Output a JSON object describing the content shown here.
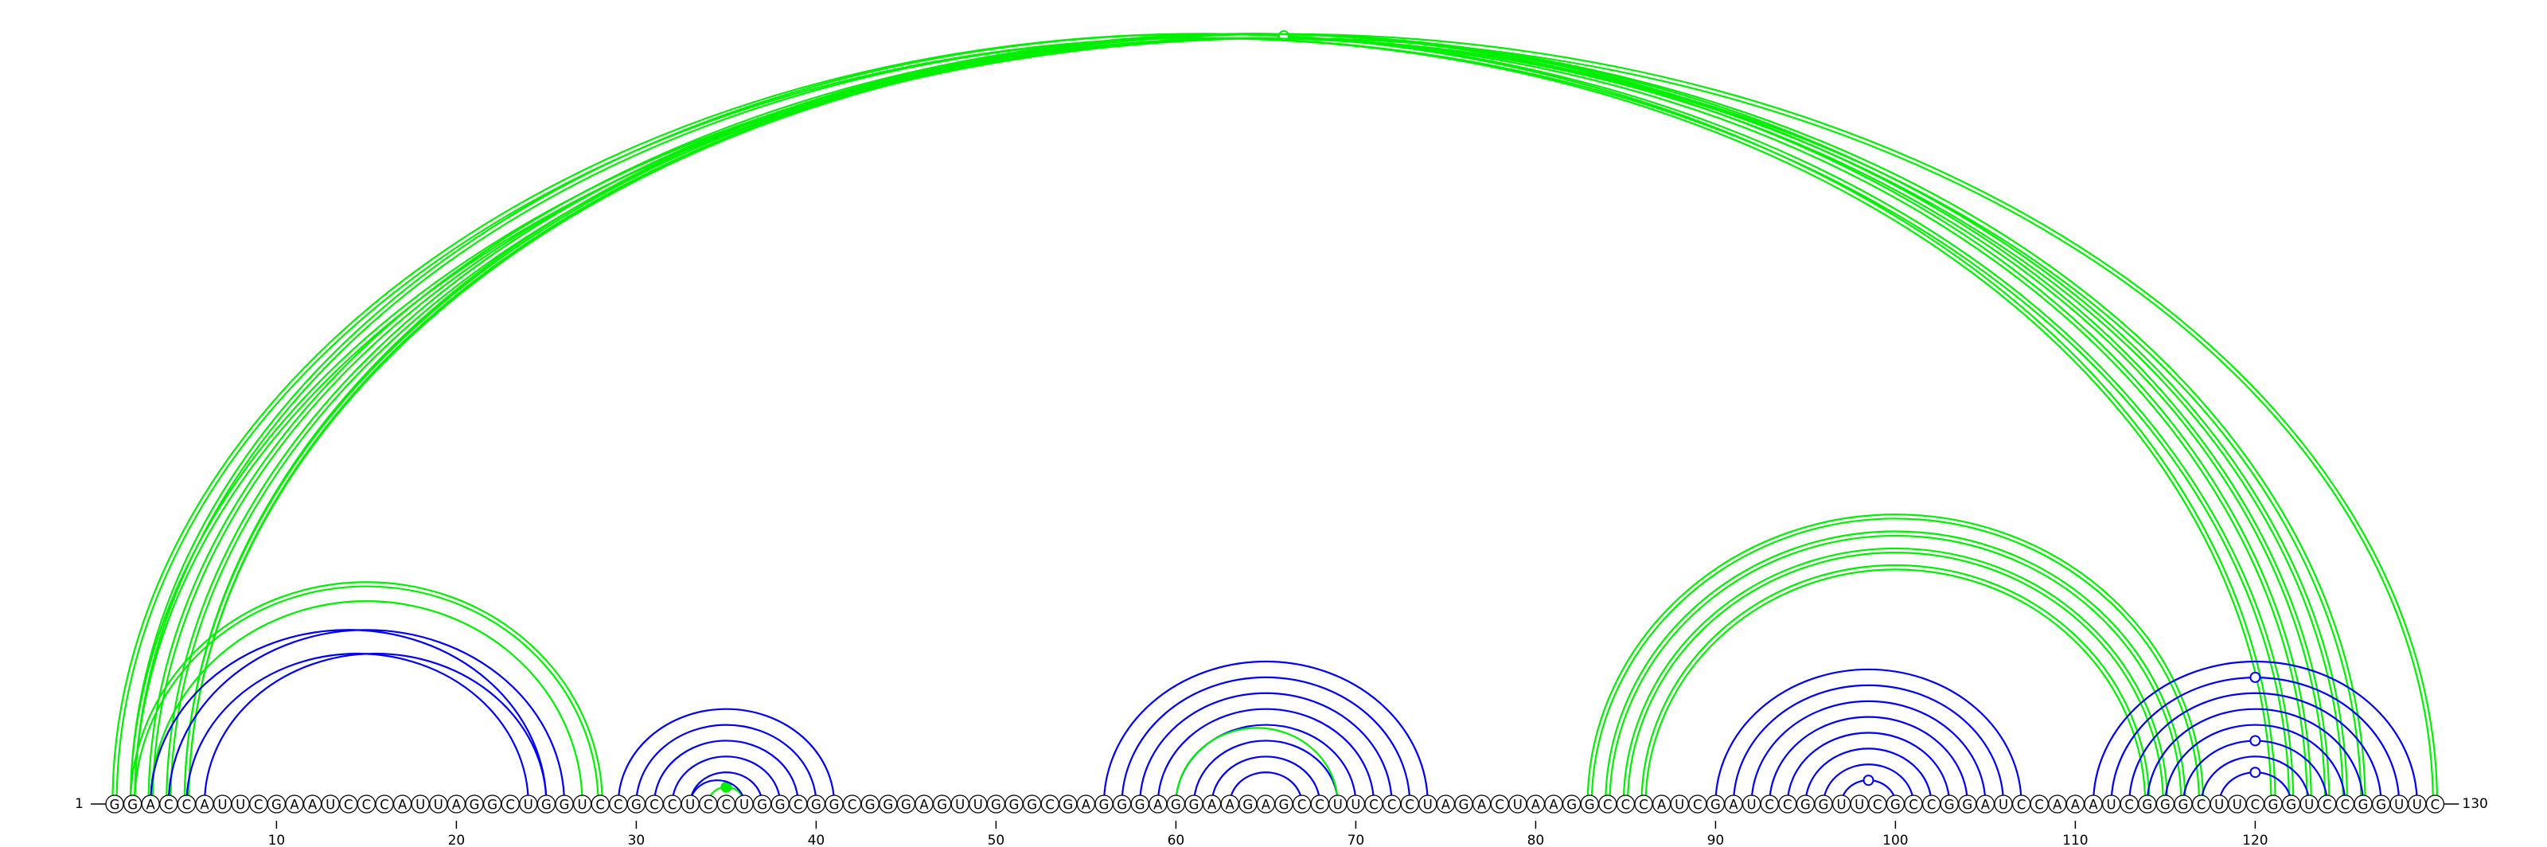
{
  "sequence": "GGACCAUUCGAAUCCCAUUAGGCUGGUCCGCCUCCUGGCGGCGGGAGUUGGGCGAGGGAGGAAGAGCCUUCCCUAGACUAAGGCCCAUCGAUCCGGUUCGCCGGAUCCAAAUCGGGCUUCGGUCCGGUUC",
  "start_label": "1",
  "end_label": "130",
  "tick_labels": [
    "10",
    "20",
    "30",
    "40",
    "50",
    "60",
    "70",
    "80",
    "90",
    "100",
    "110",
    "120"
  ],
  "colors": {
    "upper_arcs": "#00ee00",
    "lower_arcs": "#0000ee",
    "background": "#ffffff"
  },
  "arcs": [
    {
      "i": 1,
      "j": 122,
      "color": "green",
      "style": "double"
    },
    {
      "i": 2,
      "j": 121,
      "color": "green",
      "style": "double"
    },
    {
      "i": 3,
      "j": 126,
      "color": "green",
      "style": "double"
    },
    {
      "i": 4,
      "j": 125,
      "color": "green",
      "style": "double"
    },
    {
      "i": 5,
      "j": 124,
      "color": "green",
      "style": "double"
    },
    {
      "i": 2,
      "j": 130,
      "color": "green",
      "style": "double",
      "marker": "open"
    },
    {
      "i": 5,
      "j": 123,
      "color": "green",
      "style": "double"
    },
    {
      "i": 2,
      "j": 28,
      "color": "green",
      "style": "double"
    },
    {
      "i": 3,
      "j": 27,
      "color": "green",
      "style": "single"
    },
    {
      "i": 3,
      "j": 25,
      "color": "blue",
      "style": "single"
    },
    {
      "i": 4,
      "j": 26,
      "color": "blue",
      "style": "single"
    },
    {
      "i": 5,
      "j": 24,
      "color": "blue",
      "style": "single"
    },
    {
      "i": 6,
      "j": 25,
      "color": "blue",
      "style": "single"
    },
    {
      "i": 29,
      "j": 41,
      "color": "blue",
      "style": "single"
    },
    {
      "i": 30,
      "j": 40,
      "color": "blue",
      "style": "single"
    },
    {
      "i": 31,
      "j": 39,
      "color": "blue",
      "style": "single"
    },
    {
      "i": 32,
      "j": 38,
      "color": "blue",
      "style": "single"
    },
    {
      "i": 33,
      "j": 37,
      "color": "blue",
      "style": "single"
    },
    {
      "i": 34,
      "j": 36,
      "color": "green",
      "style": "single",
      "marker": "filled"
    },
    {
      "i": 33,
      "j": 36,
      "color": "blue",
      "style": "single"
    },
    {
      "i": 56,
      "j": 74,
      "color": "blue",
      "style": "single"
    },
    {
      "i": 57,
      "j": 73,
      "color": "blue",
      "style": "single"
    },
    {
      "i": 58,
      "j": 72,
      "color": "blue",
      "style": "single"
    },
    {
      "i": 59,
      "j": 71,
      "color": "blue",
      "style": "single"
    },
    {
      "i": 60,
      "j": 70,
      "color": "blue",
      "style": "single"
    },
    {
      "i": 61,
      "j": 69,
      "color": "blue",
      "style": "single"
    },
    {
      "i": 62,
      "j": 68,
      "color": "blue",
      "style": "single"
    },
    {
      "i": 63,
      "j": 67,
      "color": "blue",
      "style": "single"
    },
    {
      "i": 60,
      "j": 69,
      "color": "green",
      "style": "single"
    },
    {
      "i": 83,
      "j": 117,
      "color": "green",
      "style": "double"
    },
    {
      "i": 84,
      "j": 116,
      "color": "green",
      "style": "double"
    },
    {
      "i": 85,
      "j": 115,
      "color": "green",
      "style": "double"
    },
    {
      "i": 86,
      "j": 114,
      "color": "green",
      "style": "double"
    },
    {
      "i": 90,
      "j": 107,
      "color": "blue",
      "style": "single"
    },
    {
      "i": 91,
      "j": 106,
      "color": "blue",
      "style": "single"
    },
    {
      "i": 92,
      "j": 105,
      "color": "blue",
      "style": "single"
    },
    {
      "i": 93,
      "j": 104,
      "color": "blue",
      "style": "single"
    },
    {
      "i": 94,
      "j": 103,
      "color": "blue",
      "style": "single"
    },
    {
      "i": 95,
      "j": 102,
      "color": "blue",
      "style": "single"
    },
    {
      "i": 96,
      "j": 101,
      "color": "blue",
      "style": "single"
    },
    {
      "i": 97,
      "j": 100,
      "color": "blue",
      "style": "single",
      "marker": "open"
    },
    {
      "i": 111,
      "j": 129,
      "color": "blue",
      "style": "single"
    },
    {
      "i": 112,
      "j": 128,
      "color": "blue",
      "style": "single",
      "marker": "open"
    },
    {
      "i": 113,
      "j": 127,
      "color": "blue",
      "style": "single"
    },
    {
      "i": 114,
      "j": 126,
      "color": "blue",
      "style": "single"
    },
    {
      "i": 115,
      "j": 125,
      "color": "blue",
      "style": "single"
    },
    {
      "i": 116,
      "j": 124,
      "color": "blue",
      "style": "single",
      "marker": "open"
    },
    {
      "i": 117,
      "j": 123,
      "color": "blue",
      "style": "single"
    },
    {
      "i": 118,
      "j": 122,
      "color": "blue",
      "style": "single",
      "marker": "open"
    }
  ]
}
